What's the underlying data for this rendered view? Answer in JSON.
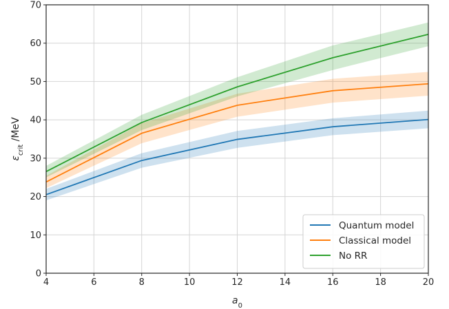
{
  "chart_data": {
    "type": "line",
    "xlabel": "a",
    "xlabel_sub": "0",
    "ylabel": "ε",
    "ylabel_sub": "crit",
    "ylabel_unit": " /MeV",
    "xlim": [
      4,
      20
    ],
    "ylim": [
      0,
      70
    ],
    "xticks": [
      4,
      6,
      8,
      10,
      12,
      14,
      16,
      18,
      20
    ],
    "yticks": [
      0,
      10,
      20,
      30,
      40,
      50,
      60,
      70
    ],
    "grid": true,
    "legend_position": "lower-right",
    "x": [
      4,
      8,
      12,
      16,
      20
    ],
    "series": [
      {
        "name": "Quantum model",
        "color": "#1f77b4",
        "values": [
          20.5,
          29.4,
          34.9,
          38.2,
          40.1
        ],
        "lower": [
          19.0,
          27.5,
          32.7,
          36.0,
          37.8
        ],
        "upper": [
          22.0,
          31.3,
          37.1,
          40.4,
          42.4
        ]
      },
      {
        "name": "Classical model",
        "color": "#ff7f0e",
        "values": [
          23.8,
          36.5,
          43.8,
          47.6,
          49.4
        ],
        "lower": [
          22.2,
          33.9,
          40.8,
          44.5,
          46.3
        ],
        "upper": [
          25.4,
          39.1,
          46.8,
          50.7,
          52.5
        ]
      },
      {
        "name": "No RR",
        "color": "#2ca02c",
        "values": [
          26.5,
          39.3,
          48.6,
          56.2,
          62.3
        ],
        "lower": [
          25.0,
          37.3,
          46.1,
          53.0,
          59.2
        ],
        "upper": [
          28.0,
          41.3,
          51.1,
          59.4,
          65.4
        ]
      }
    ]
  }
}
